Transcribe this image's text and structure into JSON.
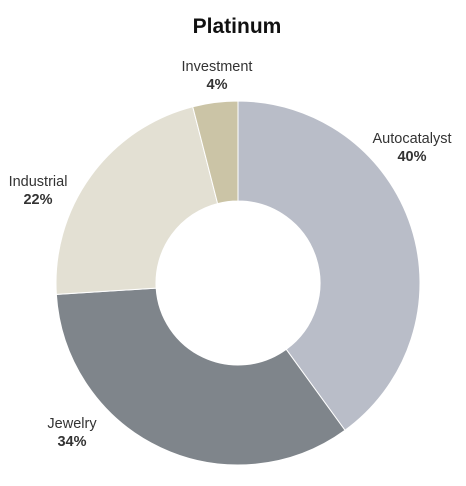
{
  "chart_data": {
    "type": "pie",
    "title": "Platinum",
    "donut": true,
    "slices": [
      {
        "label": "Autocatalyst",
        "value": 40,
        "value_label": "40%",
        "color": "#b9bdc8"
      },
      {
        "label": "Jewelry",
        "value": 34,
        "value_label": "34%",
        "color": "#7f858b"
      },
      {
        "label": "Industrial",
        "value": 22,
        "value_label": "22%",
        "color": "#e3e0d3"
      },
      {
        "label": "Investment",
        "value": 4,
        "value_label": "4%",
        "color": "#cbc4a6"
      }
    ],
    "legend": "none"
  }
}
